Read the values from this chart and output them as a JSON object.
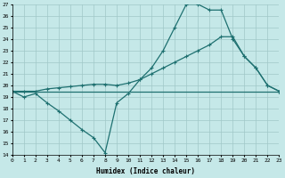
{
  "xlabel": "Humidex (Indice chaleur)",
  "bg_color": "#c5e8e8",
  "grid_color": "#a0c8c8",
  "line_color": "#1e7070",
  "x_min": 0,
  "x_max": 23,
  "y_min": 14,
  "y_max": 27,
  "line1_x": [
    0,
    1,
    2,
    3,
    4,
    5,
    6,
    7,
    8,
    9,
    10,
    11,
    12,
    13,
    14,
    15,
    16,
    17,
    18,
    19,
    20,
    21,
    22,
    23
  ],
  "line1_y": [
    19.5,
    19.0,
    19.3,
    18.5,
    17.8,
    17.0,
    16.2,
    15.5,
    14.2,
    18.5,
    19.3,
    20.5,
    21.5,
    23.0,
    25.0,
    27.0,
    27.0,
    26.5,
    26.5,
    24.0,
    22.5,
    21.5,
    20.0,
    19.5
  ],
  "line2_x": [
    0,
    1,
    2,
    3,
    4,
    5,
    6,
    7,
    8,
    9,
    10,
    11,
    12,
    13,
    14,
    15,
    16,
    17,
    18,
    19,
    20,
    21,
    22,
    23
  ],
  "line2_y": [
    19.5,
    19.5,
    19.5,
    19.7,
    19.8,
    19.9,
    20.0,
    20.1,
    20.1,
    20.0,
    20.2,
    20.5,
    21.0,
    21.5,
    22.0,
    22.5,
    23.0,
    23.5,
    24.2,
    24.2,
    22.5,
    21.5,
    20.0,
    19.5
  ],
  "line3_x": [
    0,
    1,
    2,
    3,
    4,
    5,
    6,
    7,
    8,
    9,
    10,
    11,
    12,
    13,
    14,
    15,
    16,
    17,
    18,
    19,
    20,
    21,
    22,
    23
  ],
  "line3_y": [
    19.5,
    19.5,
    19.5,
    19.5,
    19.5,
    19.5,
    19.5,
    19.5,
    19.5,
    19.5,
    19.5,
    19.5,
    19.5,
    19.5,
    19.5,
    19.5,
    19.5,
    19.5,
    19.5,
    19.5,
    19.5,
    19.5,
    19.5,
    19.5
  ]
}
